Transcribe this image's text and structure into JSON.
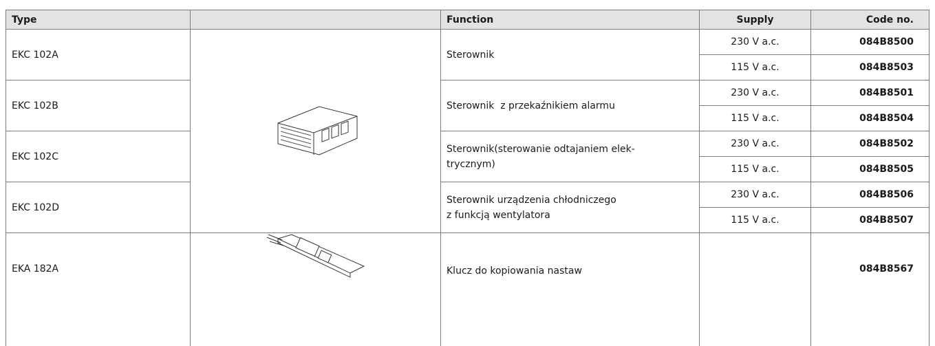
{
  "header": {
    "type": "Type",
    "function": "Function",
    "supply": "Supply",
    "code": "Code no."
  },
  "rows": [
    {
      "type": "EKC 102A",
      "function": [
        "Sterownik"
      ],
      "items": [
        {
          "supply": "230 V a.c.",
          "code": "084B8500"
        },
        {
          "supply": "115 V a.c.",
          "code": "084B8503"
        }
      ]
    },
    {
      "type": "EKC 102B",
      "function": [
        "Sterownik  z przekaźnikiem alarmu"
      ],
      "items": [
        {
          "supply": "230 V a.c.",
          "code": "084B8501"
        },
        {
          "supply": "115 V a.c.",
          "code": "084B8504"
        }
      ]
    },
    {
      "type": "EKC 102C",
      "function": [
        "Sterownik(sterowanie odtajaniem elek-",
        "trycznym)"
      ],
      "items": [
        {
          "supply": "230 V a.c.",
          "code": "084B8502"
        },
        {
          "supply": "115 V a.c.",
          "code": "084B8505"
        }
      ]
    },
    {
      "type": "EKC 102D",
      "function": [
        "Sterownik urządzenia chłodniczego",
        "z funkcją wentylatora"
      ],
      "items": [
        {
          "supply": "230 V a.c.",
          "code": "084B8506"
        },
        {
          "supply": "115 V a.c.",
          "code": "084B8507"
        }
      ]
    },
    {
      "type": "EKA 182A",
      "function": [
        "Klucz do kopiowania nastaw"
      ],
      "items": [
        {
          "code": "084B8567"
        }
      ]
    }
  ]
}
